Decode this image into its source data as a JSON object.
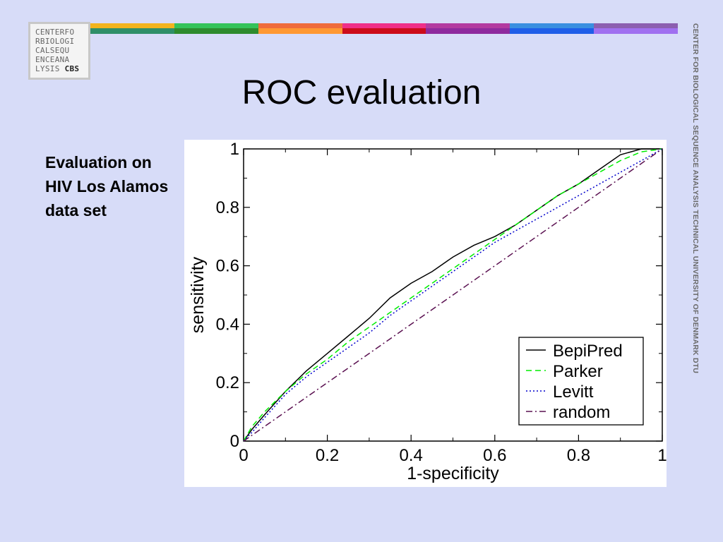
{
  "logo": {
    "lines": [
      "CENTERFO",
      "RBIOLOGI",
      "CALSEQU",
      "ENCEANA",
      "LYSIS"
    ],
    "bold_text": "CBS"
  },
  "stripe_colors": [
    [
      "#f2b41e",
      "#2f8f69"
    ],
    [
      "#35c35a",
      "#2e8b2e"
    ],
    [
      "#ef6b3c",
      "#ff9833"
    ],
    [
      "#ef2f88",
      "#cc0c1a"
    ],
    [
      "#b33aa0",
      "#8e2a9e"
    ],
    [
      "#3a8fe0",
      "#1f5ee8"
    ],
    [
      "#8c5fb0",
      "#a070f0"
    ]
  ],
  "title": "ROC evaluation",
  "side_text": "Evaluation on HIV Los Alamos data set",
  "vertical_text": "CENTER FOR BIOLOGICAL SEQUENCE ANALYSIS TECHNICAL UNIVERSITY OF DENMARK DTU",
  "chart_data": {
    "type": "line",
    "xlabel": "1-specificity",
    "ylabel": "sensitivity",
    "xlim": [
      0,
      1
    ],
    "ylim": [
      0,
      1
    ],
    "xticks": [
      "0",
      "0.2",
      "0.4",
      "0.6",
      "0.8",
      "1"
    ],
    "yticks": [
      "0",
      "0.2",
      "0.4",
      "0.6",
      "0.8",
      "1"
    ],
    "grid": false,
    "legend_position": "bottom-right",
    "series": [
      {
        "name": "BepiPred",
        "color": "#000000",
        "style": "solid",
        "x": [
          0,
          0.02,
          0.05,
          0.1,
          0.15,
          0.2,
          0.25,
          0.3,
          0.35,
          0.4,
          0.45,
          0.5,
          0.55,
          0.6,
          0.65,
          0.7,
          0.75,
          0.8,
          0.85,
          0.9,
          0.95,
          1
        ],
        "y": [
          0,
          0.04,
          0.09,
          0.17,
          0.24,
          0.3,
          0.36,
          0.42,
          0.49,
          0.54,
          0.58,
          0.63,
          0.67,
          0.7,
          0.74,
          0.79,
          0.84,
          0.88,
          0.93,
          0.98,
          1,
          1
        ]
      },
      {
        "name": "Parker",
        "color": "#00ee00",
        "style": "dashed",
        "x": [
          0,
          0.02,
          0.05,
          0.1,
          0.15,
          0.2,
          0.25,
          0.3,
          0.35,
          0.4,
          0.45,
          0.5,
          0.55,
          0.6,
          0.65,
          0.7,
          0.75,
          0.8,
          0.85,
          0.9,
          0.95,
          1
        ],
        "y": [
          0,
          0.05,
          0.1,
          0.17,
          0.23,
          0.28,
          0.34,
          0.39,
          0.44,
          0.49,
          0.54,
          0.59,
          0.64,
          0.69,
          0.74,
          0.79,
          0.84,
          0.88,
          0.92,
          0.96,
          0.99,
          1
        ]
      },
      {
        "name": "Levitt",
        "color": "#0000cc",
        "style": "dotted",
        "x": [
          0,
          0.02,
          0.05,
          0.1,
          0.15,
          0.2,
          0.25,
          0.3,
          0.35,
          0.4,
          0.45,
          0.5,
          0.55,
          0.6,
          0.65,
          0.7,
          0.75,
          0.8,
          0.85,
          0.9,
          0.95,
          1
        ],
        "y": [
          0,
          0.03,
          0.08,
          0.16,
          0.22,
          0.27,
          0.32,
          0.37,
          0.43,
          0.48,
          0.53,
          0.58,
          0.63,
          0.68,
          0.72,
          0.76,
          0.8,
          0.84,
          0.88,
          0.92,
          0.96,
          1
        ]
      },
      {
        "name": "random",
        "color": "#5a1050",
        "style": "dashdot",
        "x": [
          0,
          1
        ],
        "y": [
          0,
          1
        ]
      }
    ]
  }
}
